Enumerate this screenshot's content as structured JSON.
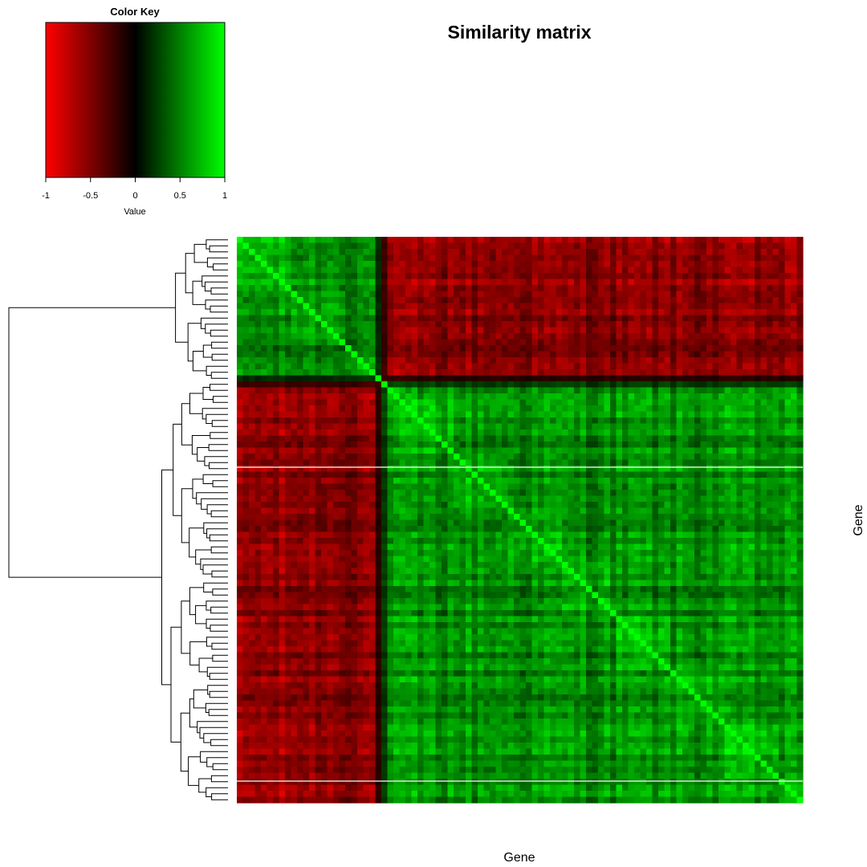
{
  "chart_data": {
    "type": "heatmap",
    "title": "Similarity matrix",
    "xlabel": "Gene",
    "ylabel": "Gene",
    "value_range": [
      -1,
      1
    ],
    "color_key": {
      "title": "Color Key",
      "xlabel": "Value",
      "ticks": [
        -1,
        -0.5,
        0,
        0.5,
        1
      ],
      "tick_labels": [
        "-1",
        "-0.5",
        "0",
        "0.5",
        "1"
      ],
      "colors": {
        "low": "#ff0000",
        "mid": "#000000",
        "high": "#00ff00"
      }
    },
    "clusters": [
      {
        "name": "",
        "fraction": 0.25
      },
      {
        "name": "",
        "fraction": 0.75
      }
    ],
    "within_cluster_similarity_approx": 0.55,
    "between_cluster_similarity_approx": -0.55,
    "diagonal_value": 1,
    "row_dendrogram": true,
    "column_dendrogram": false,
    "row_separators": true
  }
}
